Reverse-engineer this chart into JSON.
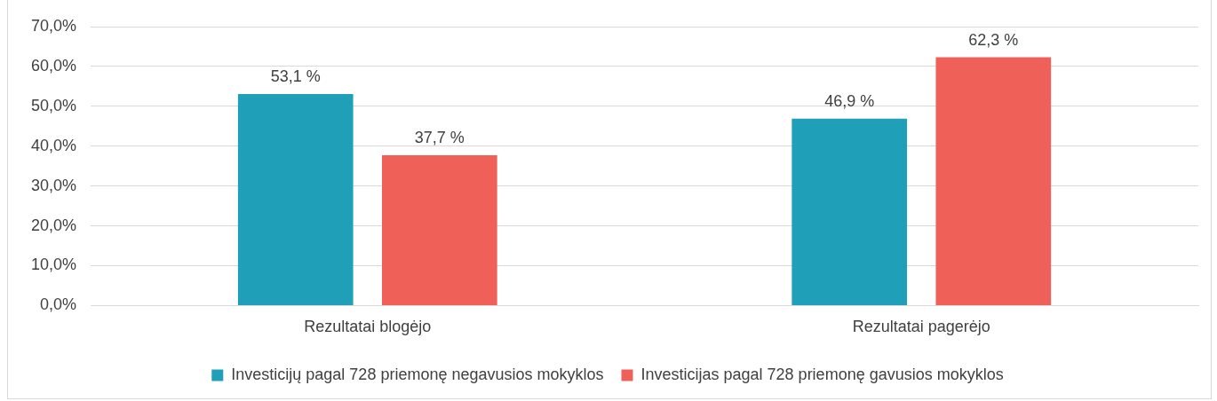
{
  "chart_data": {
    "type": "bar",
    "categories": [
      "Rezultatai blogėjo",
      "Rezultatai pagerėjo"
    ],
    "series": [
      {
        "name": "Investicijų pagal 728 priemonę negavusios mokyklos",
        "color": "#20a0b8",
        "values": [
          53.1,
          46.9
        ],
        "value_labels": [
          "53,1 %",
          "46,9 %"
        ]
      },
      {
        "name": "Investicijas pagal 728 priemonę gavusios mokyklos",
        "color": "#ef6158",
        "values": [
          37.7,
          62.3
        ],
        "value_labels": [
          "37,7 %",
          "62,3 %"
        ]
      }
    ],
    "ylim": [
      0,
      70
    ],
    "yticks": [
      {
        "value": 0,
        "label": "0,0%"
      },
      {
        "value": 10,
        "label": "10,0%"
      },
      {
        "value": 20,
        "label": "20,0%"
      },
      {
        "value": 30,
        "label": "30,0%"
      },
      {
        "value": 40,
        "label": "40,0%"
      },
      {
        "value": 50,
        "label": "50,0%"
      },
      {
        "value": 60,
        "label": "60,0%"
      },
      {
        "value": 70,
        "label": "70,0%"
      }
    ],
    "grid": "y",
    "legend": "bottom"
  }
}
